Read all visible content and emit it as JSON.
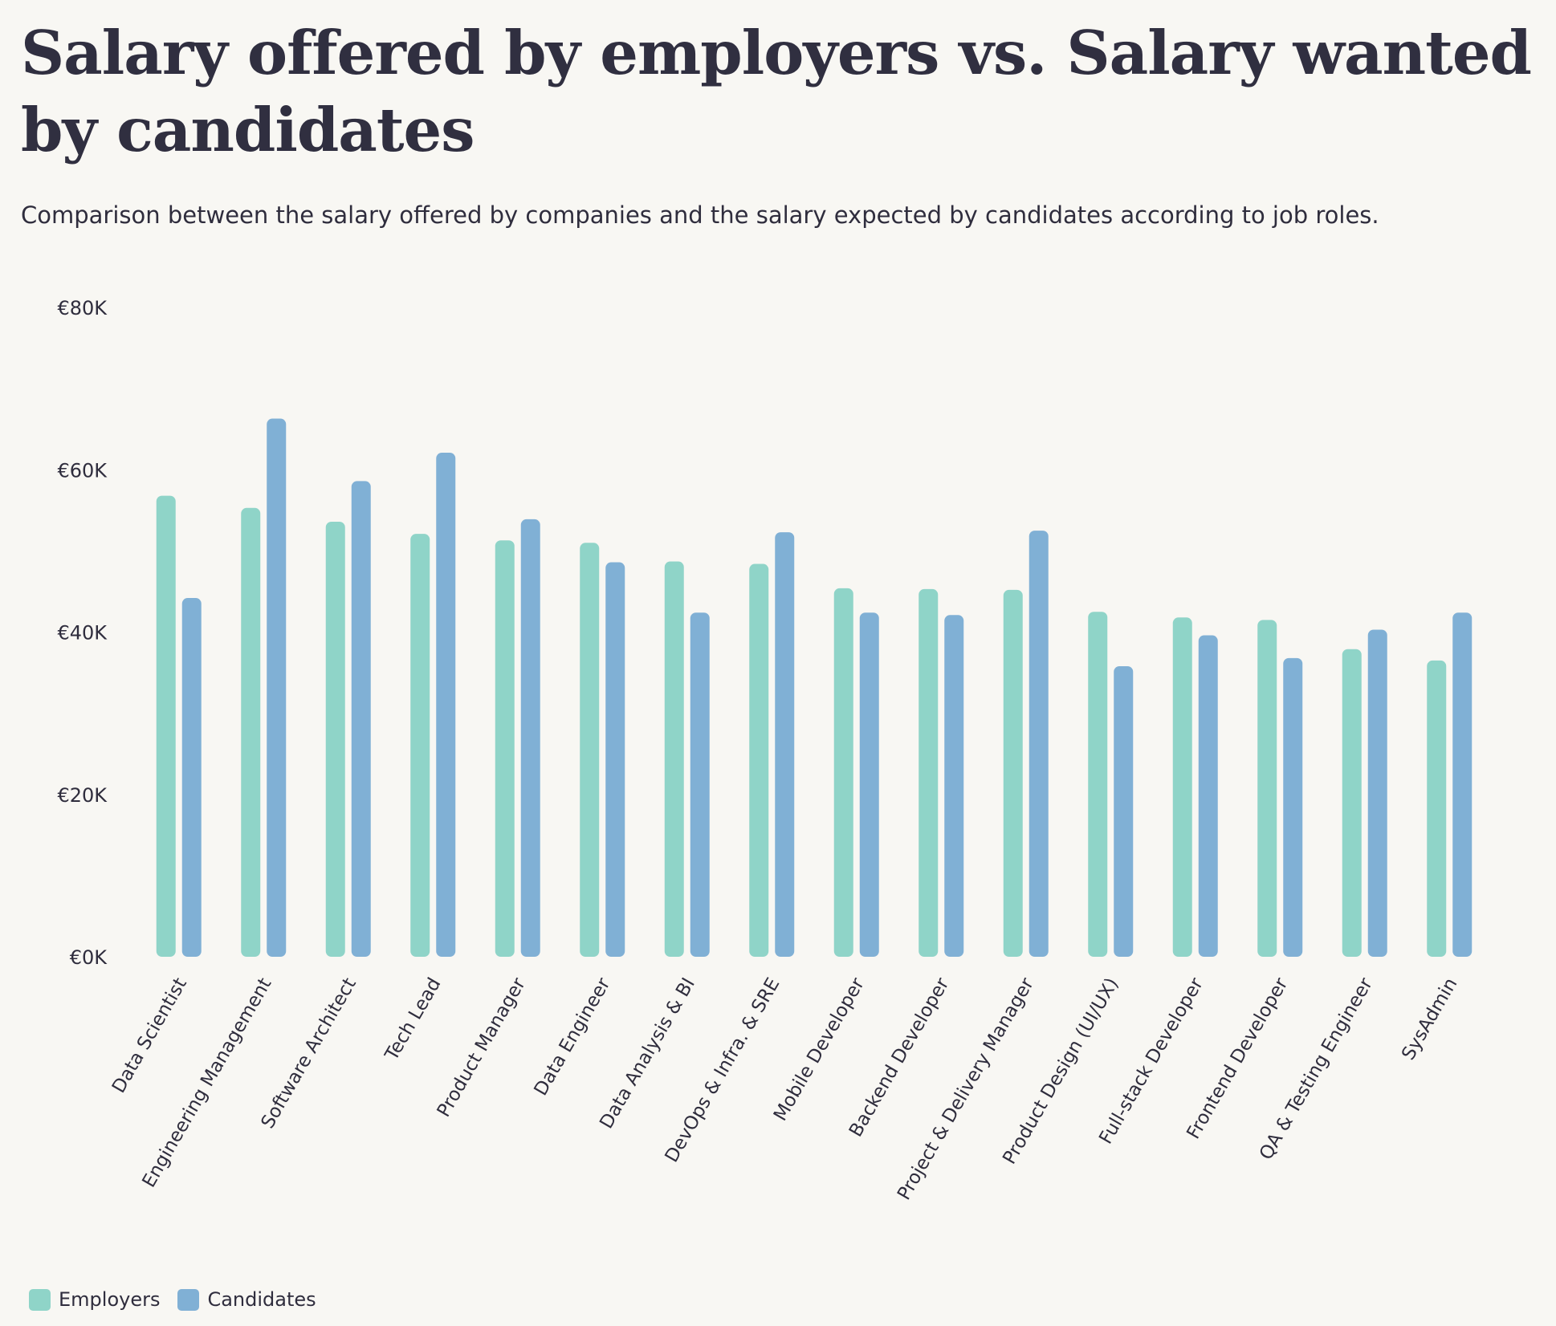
{
  "chart_data": {
    "type": "bar",
    "title": "Salary offered by employers vs. Salary wanted by candidates",
    "subtitle": "Comparison between the salary offered by companies and the salary expected by candidates according to job roles.",
    "categories": [
      "Data Scientist",
      "Engineering Management",
      "Software Architect",
      "Tech Lead",
      "Product Manager",
      "Data Engineer",
      "Data Analysis & BI",
      "DevOps & Infra. & SRE",
      "Mobile Developer",
      "Backend Developer",
      "Project & Delivery Manager",
      "Product Design (UI/UX)",
      "Full-stack Developer",
      "Frontend Developer",
      "QA & Testing Engineer",
      "SysAdmin"
    ],
    "series": [
      {
        "name": "Employers",
        "color": "#8fd4c8",
        "values": [
          56800,
          55300,
          53600,
          52100,
          51300,
          51000,
          48700,
          48400,
          45400,
          45300,
          45200,
          42500,
          41800,
          41500,
          37900,
          36500
        ]
      },
      {
        "name": "Candidates",
        "color": "#80b0d5",
        "values": [
          44200,
          66300,
          58600,
          62100,
          53900,
          48600,
          42400,
          52300,
          42400,
          42100,
          52500,
          35800,
          39600,
          36800,
          40300,
          42400
        ]
      }
    ],
    "y_ticks": [
      "€0K",
      "€20K",
      "€40K",
      "€60K",
      "€80K"
    ],
    "y_tick_values": [
      0,
      20000,
      40000,
      60000,
      80000
    ],
    "ylim": [
      0,
      80000
    ],
    "xlabel": "",
    "ylabel": "",
    "grid": false,
    "legend_position": "bottom-left"
  }
}
